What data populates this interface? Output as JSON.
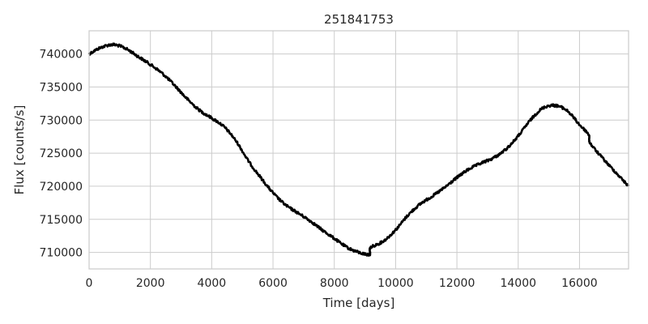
{
  "chart_data": {
    "type": "line",
    "title": "251841753",
    "xlabel": "Time [days]",
    "ylabel": "Flux [counts/s]",
    "xlim": [
      0,
      17600
    ],
    "ylim": [
      707500,
      743500
    ],
    "xticks": [
      0,
      2000,
      4000,
      6000,
      8000,
      10000,
      12000,
      14000,
      16000
    ],
    "yticks": [
      710000,
      715000,
      720000,
      725000,
      730000,
      735000,
      740000
    ],
    "grid": true,
    "series": [
      {
        "color": "#000000",
        "x": [
          0,
          400,
          800,
          1200,
          1600,
          2000,
          2400,
          2800,
          3200,
          3600,
          4000,
          4400,
          4800,
          5200,
          5600,
          6000,
          6400,
          6800,
          7200,
          7600,
          8000,
          8400,
          8800,
          9150,
          9180,
          9600,
          10000,
          10400,
          10800,
          11200,
          11600,
          12000,
          12400,
          12800,
          13200,
          13600,
          14000,
          14400,
          14800,
          15200,
          15600,
          16000,
          16300,
          16350,
          16800,
          17200,
          17600
        ],
        "y": [
          740000,
          741000,
          741400,
          740800,
          739600,
          738400,
          737000,
          735200,
          733200,
          731500,
          730300,
          729000,
          726800,
          723800,
          721300,
          719000,
          717200,
          716000,
          714800,
          713400,
          712100,
          710800,
          710000,
          709700,
          710700,
          711700,
          713400,
          715600,
          717300,
          718500,
          719800,
          721300,
          722600,
          723500,
          724300,
          725600,
          727600,
          730000,
          731800,
          732200,
          731400,
          729300,
          727800,
          726500,
          724000,
          722000,
          720000
        ]
      }
    ]
  }
}
